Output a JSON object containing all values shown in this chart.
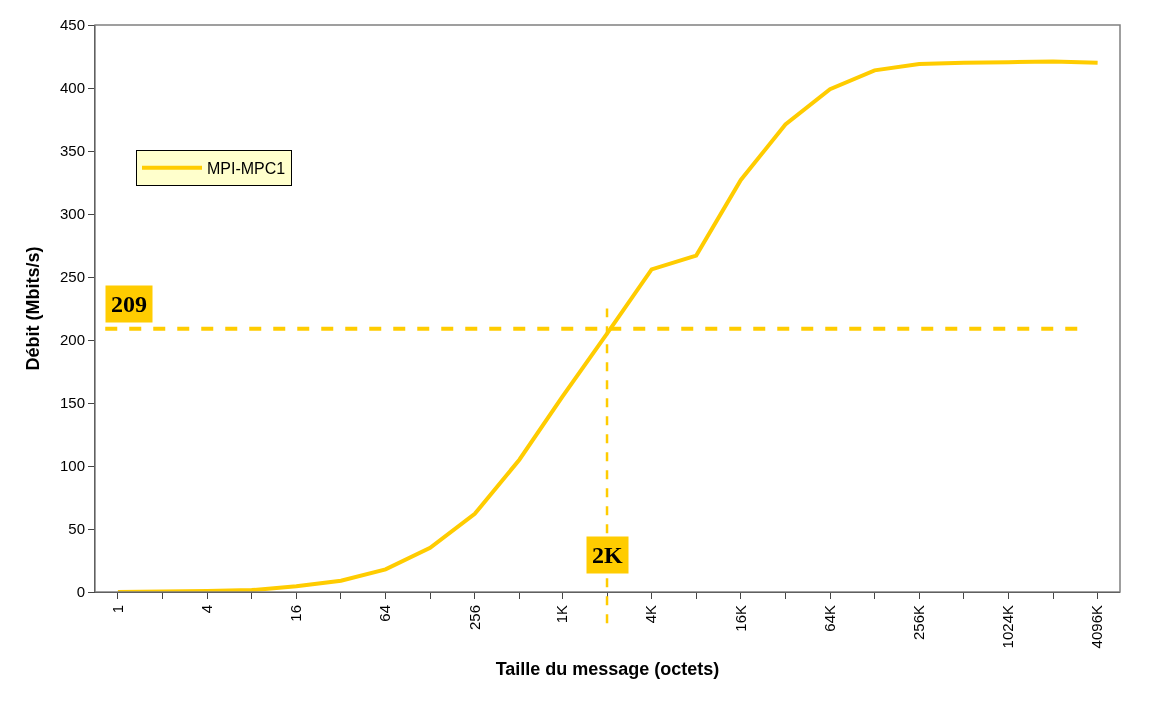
{
  "chart_data": {
    "type": "line",
    "xlabel": "Taille du message (octets)",
    "ylabel": "Débit (Mbits/s)",
    "x": [
      1,
      2,
      4,
      8,
      16,
      32,
      64,
      128,
      256,
      512,
      1000,
      2000,
      4000,
      8000,
      16000,
      32000,
      64000,
      128000,
      256000,
      512000,
      1024000,
      2048000,
      4096000
    ],
    "series": [
      {
        "name": "MPI-MPC1",
        "color": "#ffcc00",
        "values": [
          0,
          0.3,
          0.7,
          1.5,
          4.5,
          9,
          18,
          35,
          62,
          105,
          155,
          205,
          256,
          267,
          327,
          371,
          399,
          414,
          419,
          420,
          420.5,
          421,
          420
        ]
      }
    ],
    "log": "x",
    "xlim": [
      0.7,
      5800000
    ],
    "xticks": [
      1,
      {
        "value": 2,
        "label": null
      },
      4,
      {
        "value": 8,
        "label": null
      },
      16,
      {
        "value": 32,
        "label": null
      },
      64,
      {
        "value": 128,
        "label": null
      },
      256,
      {
        "value": 512,
        "label": null
      },
      {
        "value": 1000,
        "label": "1K"
      },
      {
        "value": 2000,
        "label": null
      },
      {
        "value": 4000,
        "label": "4K"
      },
      {
        "value": 8000,
        "label": null
      },
      {
        "value": 16000,
        "label": "16K"
      },
      {
        "value": 32000,
        "label": null
      },
      {
        "value": 64000,
        "label": "64K"
      },
      {
        "value": 128000,
        "label": null
      },
      {
        "value": 256000,
        "label": "256K"
      },
      {
        "value": 512000,
        "label": null
      },
      {
        "value": 1024000,
        "label": "1024K"
      },
      {
        "value": 2048000,
        "label": null
      },
      {
        "value": 4096000,
        "label": "4096K"
      }
    ],
    "ylim": [
      0,
      450
    ],
    "yticks": [
      0,
      50,
      100,
      150,
      200,
      250,
      300,
      350,
      400,
      450
    ],
    "ref_lines": [
      {
        "axis": "y",
        "value": 209,
        "label": "209",
        "color": "#ffcc00",
        "line_style": "dashed"
      },
      {
        "axis": "x",
        "value": 2000,
        "label": "2K",
        "color": "#ffcc00",
        "line_style": "dashed"
      }
    ],
    "legend": "top left",
    "marker": "none",
    "line_style": "solid"
  }
}
